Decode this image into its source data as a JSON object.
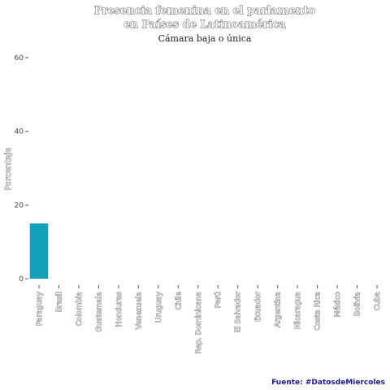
{
  "chart_data": {
    "type": "bar",
    "title_line1": "Presencia femenina en el parlamento",
    "title_line2": "en Países de Latinoamérica",
    "subtitle": "Cámara baja o única",
    "ylabel": "Porcentaje",
    "xlabel": "",
    "ylim": [
      0,
      62
    ],
    "yticks": [
      0,
      20,
      40,
      60
    ],
    "grid": false,
    "categories": [
      "Paraguay",
      "Brasil",
      "Colombia",
      "Guatemala",
      "Honduras",
      "Venezuela",
      "Uruguay",
      "Chile",
      "Rep. Dominicana",
      "Perú",
      "El Salvador",
      "Ecuador",
      "Argentina",
      "Nicaragua",
      "Costa Rica",
      "México",
      "Bolivia",
      "Cuba"
    ],
    "values": [
      15,
      null,
      null,
      null,
      null,
      null,
      null,
      null,
      null,
      null,
      null,
      null,
      null,
      null,
      null,
      null,
      null,
      null
    ],
    "bar_color": "#139fb8",
    "caption": "Fuente: #DatosdeMiercoles"
  }
}
